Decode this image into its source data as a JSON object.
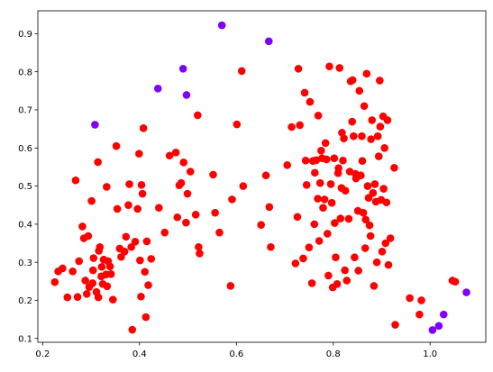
{
  "chart_data": {
    "type": "scatter",
    "title": "",
    "xlabel": "",
    "ylabel": "",
    "xlim": [
      0.19,
      1.115
    ],
    "ylim": [
      0.09,
      0.96
    ],
    "x_ticks": [
      0.2,
      0.4,
      0.6,
      0.8,
      1.0
    ],
    "y_ticks": [
      0.1,
      0.2,
      0.3,
      0.4,
      0.5,
      0.6,
      0.7,
      0.8,
      0.9
    ],
    "x_tick_labels": [
      "0.2",
      "0.4",
      "0.6",
      "0.8",
      "1.0"
    ],
    "y_tick_labels": [
      "0.1",
      "0.2",
      "0.3",
      "0.4",
      "0.5",
      "0.6",
      "0.7",
      "0.8",
      "0.9"
    ],
    "grid": false,
    "colors": {
      "red": "#ff0000",
      "purple": "#8000ff"
    },
    "series": [
      {
        "color": "red",
        "points": [
          [
            0.225,
            0.248
          ],
          [
            0.232,
            0.276
          ],
          [
            0.241,
            0.284
          ],
          [
            0.251,
            0.208
          ],
          [
            0.262,
            0.276
          ],
          [
            0.268,
            0.515
          ],
          [
            0.272,
            0.209
          ],
          [
            0.275,
            0.303
          ],
          [
            0.282,
            0.394
          ],
          [
            0.285,
            0.363
          ],
          [
            0.288,
            0.252
          ],
          [
            0.291,
            0.217
          ],
          [
            0.294,
            0.369
          ],
          [
            0.296,
            0.235
          ],
          [
            0.301,
            0.461
          ],
          [
            0.303,
            0.245
          ],
          [
            0.304,
            0.279
          ],
          [
            0.305,
            0.311
          ],
          [
            0.311,
            0.222
          ],
          [
            0.314,
            0.563
          ],
          [
            0.315,
            0.208
          ],
          [
            0.316,
            0.33
          ],
          [
            0.318,
            0.34
          ],
          [
            0.321,
            0.263
          ],
          [
            0.322,
            0.288
          ],
          [
            0.324,
            0.243
          ],
          [
            0.326,
            0.307
          ],
          [
            0.331,
            0.268
          ],
          [
            0.332,
            0.498
          ],
          [
            0.333,
            0.237
          ],
          [
            0.335,
            0.303
          ],
          [
            0.339,
            0.289
          ],
          [
            0.341,
            0.269
          ],
          [
            0.345,
            0.202
          ],
          [
            0.352,
            0.605
          ],
          [
            0.354,
            0.44
          ],
          [
            0.359,
            0.336
          ],
          [
            0.362,
            0.314
          ],
          [
            0.369,
            0.328
          ],
          [
            0.372,
            0.367
          ],
          [
            0.377,
            0.45
          ],
          [
            0.379,
            0.505
          ],
          [
            0.383,
            0.34
          ],
          [
            0.385,
            0.123
          ],
          [
            0.391,
            0.354
          ],
          [
            0.396,
            0.44
          ],
          [
            0.399,
            0.585
          ],
          [
            0.401,
            0.305
          ],
          [
            0.403,
            0.21
          ],
          [
            0.404,
            0.503
          ],
          [
            0.406,
            0.48
          ],
          [
            0.408,
            0.652
          ],
          [
            0.411,
            0.275
          ],
          [
            0.413,
            0.156
          ],
          [
            0.415,
            0.355
          ],
          [
            0.418,
            0.24
          ],
          [
            0.424,
            0.309
          ],
          [
            0.44,
            0.443
          ],
          [
            0.452,
            0.378
          ],
          [
            0.462,
            0.58
          ],
          [
            0.475,
            0.588
          ],
          [
            0.478,
            0.418
          ],
          [
            0.482,
            0.502
          ],
          [
            0.486,
            0.508
          ],
          [
            0.491,
            0.562
          ],
          [
            0.496,
            0.404
          ],
          [
            0.499,
            0.48
          ],
          [
            0.505,
            0.538
          ],
          [
            0.516,
            0.425
          ],
          [
            0.52,
            0.686
          ],
          [
            0.522,
            0.34
          ],
          [
            0.524,
            0.323
          ],
          [
            0.552,
            0.53
          ],
          [
            0.556,
            0.43
          ],
          [
            0.565,
            0.378
          ],
          [
            0.588,
            0.238
          ],
          [
            0.591,
            0.465
          ],
          [
            0.601,
            0.662
          ],
          [
            0.611,
            0.802
          ],
          [
            0.614,
            0.5
          ],
          [
            0.651,
            0.398
          ],
          [
            0.661,
            0.528
          ],
          [
            0.668,
            0.445
          ],
          [
            0.671,
            0.34
          ],
          [
            0.705,
            0.555
          ],
          [
            0.714,
            0.655
          ],
          [
            0.722,
            0.297
          ],
          [
            0.726,
            0.419
          ],
          [
            0.728,
            0.808
          ],
          [
            0.731,
            0.66
          ],
          [
            0.738,
            0.31
          ],
          [
            0.741,
            0.745
          ],
          [
            0.743,
            0.567
          ],
          [
            0.745,
            0.503
          ],
          [
            0.75,
            0.339
          ],
          [
            0.752,
            0.721
          ],
          [
            0.756,
            0.245
          ],
          [
            0.758,
            0.566
          ],
          [
            0.761,
            0.4
          ],
          [
            0.762,
            0.535
          ],
          [
            0.765,
            0.568
          ],
          [
            0.768,
            0.467
          ],
          [
            0.769,
            0.685
          ],
          [
            0.771,
            0.356
          ],
          [
            0.773,
            0.508
          ],
          [
            0.775,
            0.593
          ],
          [
            0.777,
            0.573
          ],
          [
            0.779,
            0.443
          ],
          [
            0.782,
            0.465
          ],
          [
            0.784,
            0.613
          ],
          [
            0.786,
            0.57
          ],
          [
            0.788,
            0.375
          ],
          [
            0.79,
            0.265
          ],
          [
            0.792,
            0.814
          ],
          [
            0.795,
            0.505
          ],
          [
            0.797,
            0.456
          ],
          [
            0.799,
            0.234
          ],
          [
            0.802,
            0.573
          ],
          [
            0.803,
            0.403
          ],
          [
            0.805,
            0.313
          ],
          [
            0.808,
            0.243
          ],
          [
            0.81,
            0.534
          ],
          [
            0.811,
            0.547
          ],
          [
            0.813,
            0.81
          ],
          [
            0.815,
            0.415
          ],
          [
            0.817,
            0.495
          ],
          [
            0.818,
            0.64
          ],
          [
            0.82,
            0.567
          ],
          [
            0.822,
            0.625
          ],
          [
            0.824,
            0.279
          ],
          [
            0.825,
            0.488
          ],
          [
            0.828,
            0.252
          ],
          [
            0.832,
            0.414
          ],
          [
            0.834,
            0.538
          ],
          [
            0.836,
            0.775
          ],
          [
            0.839,
            0.669
          ],
          [
            0.84,
            0.778
          ],
          [
            0.842,
            0.631
          ],
          [
            0.844,
            0.313
          ],
          [
            0.846,
            0.532
          ],
          [
            0.847,
            0.52
          ],
          [
            0.849,
            0.525
          ],
          [
            0.851,
            0.435
          ],
          [
            0.852,
            0.278
          ],
          [
            0.854,
            0.75
          ],
          [
            0.857,
            0.528
          ],
          [
            0.859,
            0.631
          ],
          [
            0.86,
            0.566
          ],
          [
            0.862,
            0.43
          ],
          [
            0.864,
            0.71
          ],
          [
            0.866,
            0.337
          ],
          [
            0.867,
            0.412
          ],
          [
            0.869,
            0.795
          ],
          [
            0.871,
            0.5
          ],
          [
            0.873,
            0.469
          ],
          [
            0.875,
            0.397
          ],
          [
            0.877,
            0.369
          ],
          [
            0.878,
            0.623
          ],
          [
            0.88,
            0.673
          ],
          [
            0.882,
            0.482
          ],
          [
            0.884,
            0.238
          ],
          [
            0.886,
            0.505
          ],
          [
            0.888,
            0.459
          ],
          [
            0.89,
            0.3
          ],
          [
            0.892,
            0.631
          ],
          [
            0.894,
            0.578
          ],
          [
            0.896,
            0.777
          ],
          [
            0.897,
            0.656
          ],
          [
            0.899,
            0.464
          ],
          [
            0.901,
            0.328
          ],
          [
            0.903,
            0.683
          ],
          [
            0.904,
            0.493
          ],
          [
            0.906,
            0.6
          ],
          [
            0.908,
            0.35
          ],
          [
            0.91,
            0.457
          ],
          [
            0.912,
            0.673
          ],
          [
            0.914,
            0.293
          ],
          [
            0.918,
            0.363
          ],
          [
            0.926,
            0.548
          ],
          [
            0.928,
            0.136
          ],
          [
            0.958,
            0.206
          ],
          [
            0.978,
            0.163
          ],
          [
            0.982,
            0.2
          ],
          [
            1.046,
            0.252
          ],
          [
            1.052,
            0.249
          ]
        ]
      },
      {
        "color": "purple",
        "points": [
          [
            0.308,
            0.661
          ],
          [
            0.438,
            0.756
          ],
          [
            0.49,
            0.808
          ],
          [
            0.497,
            0.739
          ],
          [
            0.57,
            0.922
          ],
          [
            0.667,
            0.88
          ],
          [
            1.005,
            0.122
          ],
          [
            1.018,
            0.133
          ],
          [
            1.028,
            0.163
          ],
          [
            1.075,
            0.221
          ]
        ]
      }
    ]
  }
}
